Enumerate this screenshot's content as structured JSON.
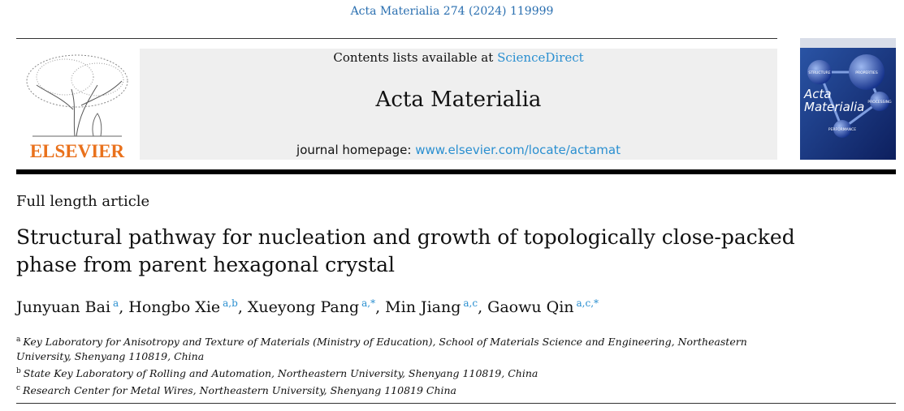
{
  "journal_ref": "Acta Materialia 274 (2024) 119999",
  "publisher": "ELSEVIER",
  "banner": {
    "contents_prefix": "Contents lists available at",
    "contents_link": "ScienceDirect",
    "journal_name": "Acta Materialia",
    "homepage_prefix": "journal homepage:",
    "homepage_link": "www.elsevier.com/locate/actamat"
  },
  "cover": {
    "title_line1": "Acta",
    "title_line2": "Materialia",
    "node1": "STRUCTURE",
    "node2": "PROPERTIES",
    "node3": "PROCESSING",
    "node4": "PERFORMANCE"
  },
  "article_type": "Full length article",
  "title_lines": [
    "Structural pathway for nucleation and growth of topologically close-packed",
    "phase from parent hexagonal crystal"
  ],
  "authors": [
    {
      "name": "Junyuan Bai",
      "sup": "a",
      "sep": ","
    },
    {
      "name": "Hongbo Xie",
      "sup": "a,b",
      "sep": ","
    },
    {
      "name": "Xueyong Pang",
      "sup": "a,*",
      "sep": ","
    },
    {
      "name": "Min Jiang",
      "sup": "a,c",
      "sep": ","
    },
    {
      "name": "Gaowu Qin",
      "sup": "a,c,*"
    }
  ],
  "affiliations": [
    {
      "label": "a",
      "text": "Key Laboratory for Anisotropy and Texture of Materials (Ministry of Education), School of Materials Science and Engineering, Northeastern University, Shenyang 110819, China"
    },
    {
      "label": "b",
      "text": "State Key Laboratory of Rolling and Automation, Northeastern University, Shenyang 110819, China"
    },
    {
      "label": "c",
      "text": "Research Center for Metal Wires, Northeastern University, Shenyang 110819 China"
    }
  ]
}
